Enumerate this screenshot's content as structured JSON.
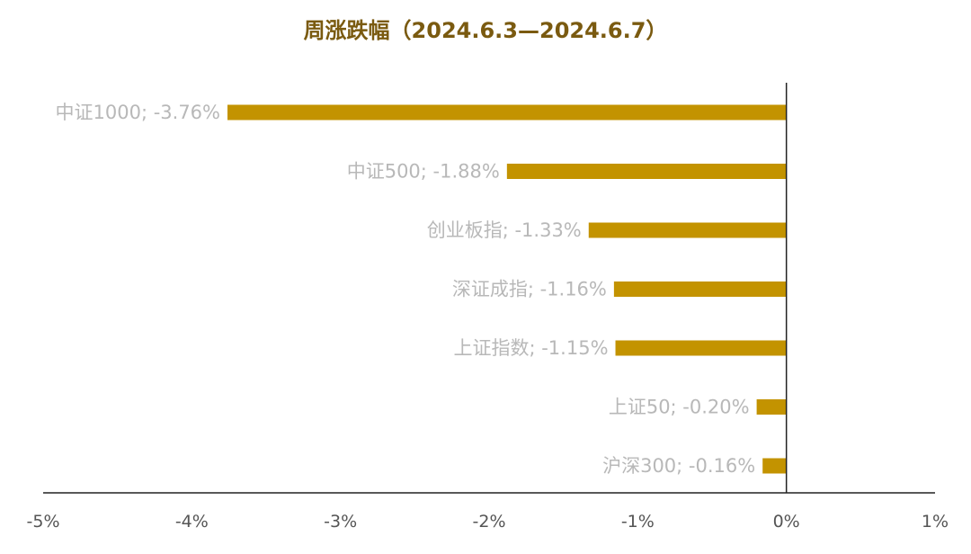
{
  "chart_data": {
    "type": "bar",
    "orientation": "horizontal",
    "title": "周涨跌幅（2024.6.3—2024.6.7）",
    "categories": [
      "中证1000",
      "中证500",
      "创业板指",
      "深证成指",
      "上证指数",
      "上证50",
      "沪深300"
    ],
    "values": [
      -3.76,
      -1.88,
      -1.33,
      -1.16,
      -1.15,
      -0.2,
      -0.16
    ],
    "data_labels": [
      "中证1000; -3.76%",
      "中证500; -1.88%",
      "创业板指; -1.33%",
      "深证成指; -1.16%",
      "上证指数; -1.15%",
      "上证50; -0.20%",
      "沪深300; -0.16%"
    ],
    "xlim": [
      -5,
      1
    ],
    "xticks": [
      "-5%",
      "-4%",
      "-3%",
      "-2%",
      "-1%",
      "0%",
      "1%"
    ],
    "unit": "%",
    "grid": false,
    "colors": {
      "bar": "#C39300",
      "title": "#7a5a10",
      "label": "#b8b8b8",
      "axis": "#222222"
    }
  }
}
